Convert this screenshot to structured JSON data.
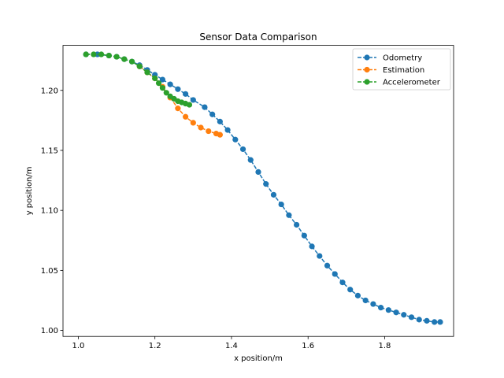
{
  "chart_data": {
    "type": "line",
    "title": "Sensor Data Comparison",
    "xlabel": "x position/m",
    "ylabel": "y position/m",
    "xlim": [
      0.96,
      1.98
    ],
    "ylim": [
      0.995,
      1.2375
    ],
    "xticks": [
      1.0,
      1.2,
      1.4,
      1.6,
      1.8
    ],
    "xtick_labels": [
      "1.0",
      "1.2",
      "1.4",
      "1.6",
      "1.8"
    ],
    "yticks": [
      1.0,
      1.05,
      1.1,
      1.15,
      1.2
    ],
    "ytick_labels": [
      "1.00",
      "1.05",
      "1.10",
      "1.15",
      "1.20"
    ],
    "grid": false,
    "legend_position": "top-right",
    "series": [
      {
        "name": "Odometry",
        "color": "#1f77b4",
        "linestyle": "dashed",
        "marker": "circle",
        "x": [
          1.02,
          1.05,
          1.08,
          1.1,
          1.12,
          1.14,
          1.16,
          1.18,
          1.2,
          1.22,
          1.24,
          1.26,
          1.28,
          1.3,
          1.33,
          1.35,
          1.37,
          1.39,
          1.41,
          1.43,
          1.45,
          1.47,
          1.49,
          1.51,
          1.53,
          1.55,
          1.57,
          1.59,
          1.61,
          1.63,
          1.65,
          1.67,
          1.69,
          1.71,
          1.73,
          1.75,
          1.77,
          1.79,
          1.81,
          1.83,
          1.85,
          1.87,
          1.89,
          1.91,
          1.93,
          1.945
        ],
        "y": [
          1.23,
          1.23,
          1.229,
          1.228,
          1.226,
          1.224,
          1.221,
          1.217,
          1.213,
          1.209,
          1.205,
          1.201,
          1.197,
          1.192,
          1.186,
          1.18,
          1.174,
          1.167,
          1.159,
          1.151,
          1.142,
          1.132,
          1.122,
          1.113,
          1.105,
          1.096,
          1.088,
          1.079,
          1.07,
          1.062,
          1.054,
          1.047,
          1.04,
          1.034,
          1.029,
          1.025,
          1.022,
          1.019,
          1.017,
          1.015,
          1.013,
          1.011,
          1.009,
          1.008,
          1.007,
          1.007
        ]
      },
      {
        "name": "Estimation",
        "color": "#ff7f0e",
        "linestyle": "dashed",
        "marker": "circle",
        "x": [
          1.16,
          1.18,
          1.2,
          1.22,
          1.24,
          1.26,
          1.28,
          1.3,
          1.32,
          1.34,
          1.36,
          1.37
        ],
        "y": [
          1.22,
          1.215,
          1.21,
          1.203,
          1.194,
          1.185,
          1.178,
          1.173,
          1.169,
          1.166,
          1.164,
          1.163
        ]
      },
      {
        "name": "Accelerometer",
        "color": "#2ca02c",
        "linestyle": "dashed",
        "marker": "circle",
        "x": [
          1.02,
          1.04,
          1.06,
          1.08,
          1.1,
          1.12,
          1.14,
          1.16,
          1.18,
          1.2,
          1.21,
          1.22,
          1.23,
          1.24,
          1.25,
          1.26,
          1.27,
          1.28,
          1.29
        ],
        "y": [
          1.23,
          1.23,
          1.23,
          1.229,
          1.228,
          1.226,
          1.224,
          1.22,
          1.215,
          1.21,
          1.206,
          1.202,
          1.198,
          1.195,
          1.193,
          1.191,
          1.19,
          1.189,
          1.188
        ]
      }
    ]
  }
}
